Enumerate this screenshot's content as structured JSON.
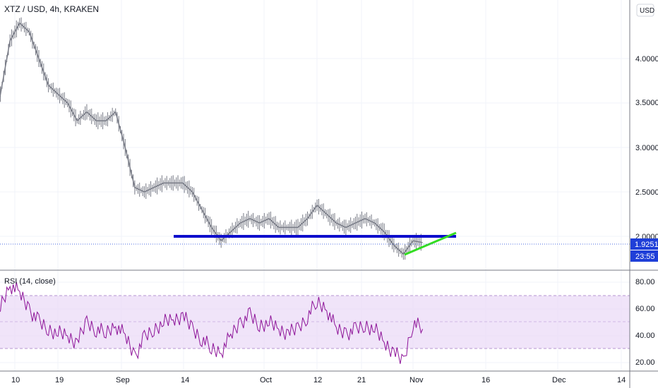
{
  "header": {
    "symbol_title": "XTZ / USD, 4h, KRAKEN",
    "currency_button": "USD"
  },
  "price_axis": {
    "ticks": [
      "4.0000",
      "3.5000",
      "3.0000",
      "2.5000",
      "2.0000"
    ],
    "last_price": "1.9251",
    "countdown": "23:55"
  },
  "rsi": {
    "label": "RSI (14, close)",
    "ticks": [
      "80.00",
      "60.00",
      "40.00",
      "20.00"
    ]
  },
  "time_axis": {
    "ticks": [
      "10",
      "19",
      "Sep",
      "14",
      "Oct",
      "12",
      "21",
      "Nov",
      "16",
      "Dec",
      "14"
    ]
  },
  "colors": {
    "candle": "#787b86",
    "support_line": "#0d0dcc",
    "trend_line": "#33dd22",
    "last_price_bg": "#1f3fd8",
    "countdown_bg": "#1f3fd8",
    "rsi_line": "#8e1599",
    "rsi_band": "#ead9f7"
  },
  "chart_data": [
    {
      "type": "line",
      "series": [
        {
          "x": [
            "Aug 05",
            "Aug 07",
            "Aug 09",
            "Aug 11",
            "Aug 13",
            "Aug 15",
            "Aug 17",
            "Aug 19",
            "Aug 21",
            "Aug 23",
            "Aug 25",
            "Aug 27",
            "Aug 29",
            "Aug 31",
            "Sep 02",
            "Sep 04",
            "Sep 06",
            "Sep 08",
            "Sep 10",
            "Sep 12",
            "Sep 14",
            "Sep 16",
            "Sep 18",
            "Sep 20",
            "Sep 22",
            "Sep 24",
            "Sep 26",
            "Sep 28",
            "Sep 30",
            "Oct 02",
            "Oct 04",
            "Oct 06",
            "Oct 08",
            "Oct 10",
            "Oct 12",
            "Oct 14",
            "Oct 16",
            "Oct 18",
            "Oct 20",
            "Oct 22",
            "Oct 24",
            "Oct 26",
            "Oct 28",
            "Oct 30",
            "Nov 01",
            "Nov 03"
          ],
          "values": [
            3.2,
            3.6,
            4.2,
            4.4,
            4.3,
            4.0,
            3.7,
            3.6,
            3.5,
            3.3,
            3.4,
            3.3,
            3.3,
            3.4,
            3.0,
            2.55,
            2.5,
            2.55,
            2.6,
            2.6,
            2.6,
            2.5,
            2.3,
            2.1,
            1.95,
            2.05,
            2.15,
            2.2,
            2.15,
            2.2,
            2.1,
            2.1,
            2.1,
            2.2,
            2.35,
            2.25,
            2.15,
            2.1,
            2.15,
            2.2,
            2.15,
            2.05,
            1.9,
            1.8,
            1.95,
            1.93
          ]
        }
      ],
      "annotations": {
        "support_level": 2.0,
        "trendline": {
          "from": [
            "Oct 29",
            1.8
          ],
          "to": [
            "Nov 09",
            2.05
          ]
        }
      },
      "last_value": 1.9251
    },
    {
      "type": "line",
      "title": "RSI (14, close)",
      "ylim": [
        15,
        85
      ],
      "band": [
        30,
        70
      ],
      "series": [
        {
          "x": [
            "Aug 05",
            "Aug 07",
            "Aug 09",
            "Aug 11",
            "Aug 13",
            "Aug 15",
            "Aug 17",
            "Aug 19",
            "Aug 21",
            "Aug 23",
            "Aug 25",
            "Aug 27",
            "Aug 29",
            "Aug 31",
            "Sep 02",
            "Sep 04",
            "Sep 06",
            "Sep 08",
            "Sep 10",
            "Sep 12",
            "Sep 14",
            "Sep 16",
            "Sep 18",
            "Sep 20",
            "Sep 22",
            "Sep 24",
            "Sep 26",
            "Sep 28",
            "Sep 30",
            "Oct 02",
            "Oct 04",
            "Oct 06",
            "Oct 08",
            "Oct 10",
            "Oct 12",
            "Oct 14",
            "Oct 16",
            "Oct 18",
            "Oct 20",
            "Oct 22",
            "Oct 24",
            "Oct 26",
            "Oct 28",
            "Oct 30",
            "Nov 01",
            "Nov 03"
          ],
          "values": [
            55,
            62,
            78,
            72,
            60,
            50,
            45,
            42,
            40,
            35,
            50,
            45,
            42,
            48,
            40,
            25,
            38,
            45,
            50,
            52,
            55,
            45,
            38,
            30,
            28,
            40,
            50,
            55,
            48,
            50,
            45,
            42,
            45,
            55,
            65,
            60,
            45,
            42,
            44,
            48,
            45,
            35,
            28,
            20,
            50,
            45
          ]
        }
      ]
    }
  ]
}
